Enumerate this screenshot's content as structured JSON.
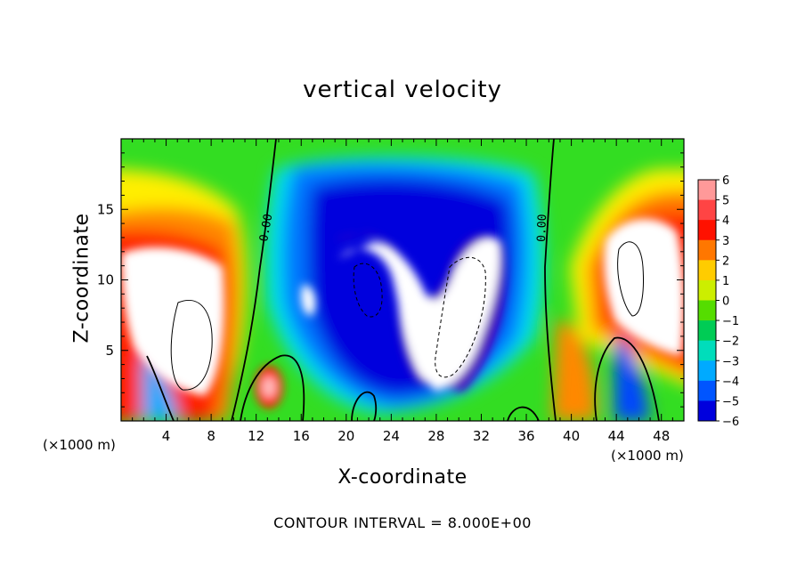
{
  "chart_data": {
    "type": "heatmap",
    "title": "vertical velocity",
    "xlabel": "X-coordinate",
    "ylabel": "Z-coordinate",
    "x_unit": "(×1000 m)",
    "y_unit": "(×1000 m)",
    "xlim": [
      0,
      50
    ],
    "ylim": [
      0,
      20
    ],
    "x_ticks": [
      4,
      8,
      12,
      16,
      20,
      24,
      28,
      32,
      36,
      40,
      44,
      48
    ],
    "y_ticks": [
      5,
      10,
      15
    ],
    "colorbar": {
      "levels": [
        6,
        5,
        4,
        3,
        2,
        1,
        0,
        -1,
        -2,
        -3,
        -4,
        -5,
        -6
      ],
      "labels": [
        "6",
        "5",
        "4",
        "3",
        "2",
        "1",
        "0",
        "−1",
        "−2",
        "−3",
        "−4",
        "−5",
        "−6"
      ]
    },
    "contour_label": "0.00",
    "contour_interval": "CONTOUR INTERVAL = 8.000E+00",
    "features": [
      {
        "kind": "updraft",
        "x": 5,
        "z": 7,
        "level": 6
      },
      {
        "kind": "updraft",
        "x": 13,
        "z": 2.5,
        "level": 5
      },
      {
        "kind": "updraft",
        "x": 45,
        "z": 10,
        "level": 6
      },
      {
        "kind": "downdraft",
        "x": 22,
        "z": 10,
        "level": -6
      },
      {
        "kind": "downdraft",
        "x": 30,
        "z": 7,
        "level": -6
      },
      {
        "kind": "downdraft",
        "x": 45,
        "z": 2,
        "level": -4
      }
    ]
  }
}
